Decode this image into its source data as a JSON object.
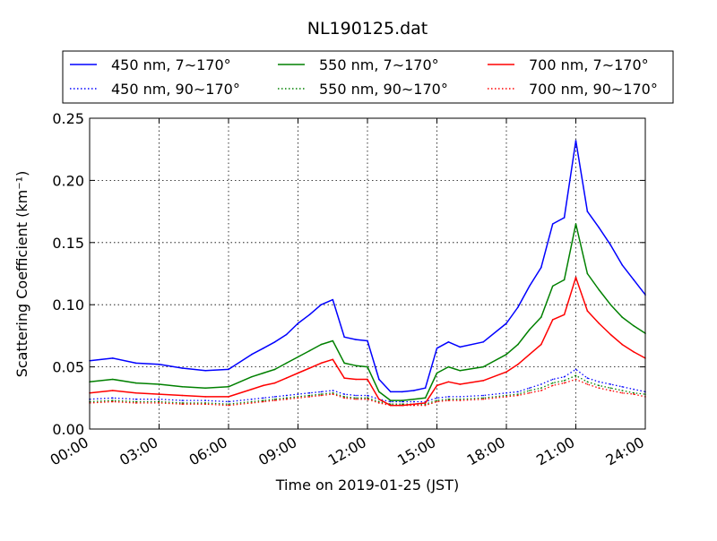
{
  "chart_data": {
    "type": "line",
    "title": "NL190125.dat",
    "xlabel": "Time on 2019-01-25 (JST)",
    "ylabel": "Scattering Coefficient (km⁻¹)",
    "xlim": [
      "00:00",
      "24:00"
    ],
    "ylim": [
      0.0,
      0.25
    ],
    "x_ticks": [
      "00:00",
      "03:00",
      "06:00",
      "09:00",
      "12:00",
      "15:00",
      "18:00",
      "21:00",
      "24:00"
    ],
    "y_ticks": [
      "0.00",
      "0.05",
      "0.10",
      "0.15",
      "0.20",
      "0.25"
    ],
    "grid": true,
    "legend": {
      "placement": "top",
      "columns": 3
    },
    "x": [
      "00:00",
      "01:00",
      "02:00",
      "03:00",
      "04:00",
      "05:00",
      "06:00",
      "07:00",
      "07:30",
      "08:00",
      "08:30",
      "09:00",
      "09:30",
      "10:00",
      "10:30",
      "11:00",
      "11:30",
      "12:00",
      "12:30",
      "13:00",
      "13:30",
      "14:00",
      "14:30",
      "15:00",
      "15:30",
      "16:00",
      "17:00",
      "18:00",
      "18:30",
      "19:00",
      "19:30",
      "20:00",
      "20:30",
      "21:00",
      "21:30",
      "22:00",
      "22:30",
      "23:00",
      "23:30",
      "24:00"
    ],
    "series": [
      {
        "name": "450 nm, 7∼170°",
        "color": "#0000ff",
        "style": "solid",
        "values": [
          0.055,
          0.057,
          0.053,
          0.052,
          0.049,
          0.047,
          0.048,
          0.06,
          0.065,
          0.07,
          0.076,
          0.085,
          0.092,
          0.1,
          0.104,
          0.074,
          0.072,
          0.071,
          0.04,
          0.03,
          0.03,
          0.031,
          0.033,
          0.065,
          0.07,
          0.066,
          0.07,
          0.085,
          0.098,
          0.115,
          0.13,
          0.165,
          0.17,
          0.232,
          0.175,
          0.162,
          0.148,
          0.132,
          0.12,
          0.108
        ]
      },
      {
        "name": "450 nm, 90∼170°",
        "color": "#0000ff",
        "style": "dotted",
        "values": [
          0.024,
          0.025,
          0.024,
          0.024,
          0.023,
          0.023,
          0.022,
          0.024,
          0.025,
          0.026,
          0.027,
          0.028,
          0.029,
          0.03,
          0.031,
          0.028,
          0.027,
          0.027,
          0.024,
          0.022,
          0.022,
          0.022,
          0.022,
          0.025,
          0.026,
          0.026,
          0.027,
          0.029,
          0.03,
          0.033,
          0.036,
          0.04,
          0.042,
          0.048,
          0.041,
          0.038,
          0.036,
          0.034,
          0.032,
          0.03
        ]
      },
      {
        "name": "550 nm, 7∼170°",
        "color": "#008000",
        "style": "solid",
        "values": [
          0.038,
          0.04,
          0.037,
          0.036,
          0.034,
          0.033,
          0.034,
          0.042,
          0.045,
          0.048,
          0.053,
          0.058,
          0.063,
          0.068,
          0.071,
          0.053,
          0.051,
          0.05,
          0.03,
          0.023,
          0.023,
          0.024,
          0.025,
          0.045,
          0.05,
          0.047,
          0.05,
          0.06,
          0.068,
          0.08,
          0.09,
          0.115,
          0.12,
          0.165,
          0.125,
          0.112,
          0.1,
          0.09,
          0.083,
          0.077
        ]
      },
      {
        "name": "550 nm, 90∼170°",
        "color": "#008000",
        "style": "dotted",
        "values": [
          0.022,
          0.023,
          0.022,
          0.022,
          0.021,
          0.021,
          0.02,
          0.022,
          0.023,
          0.024,
          0.025,
          0.026,
          0.027,
          0.028,
          0.029,
          0.026,
          0.025,
          0.025,
          0.022,
          0.02,
          0.02,
          0.02,
          0.02,
          0.023,
          0.024,
          0.024,
          0.025,
          0.027,
          0.028,
          0.031,
          0.033,
          0.037,
          0.039,
          0.043,
          0.038,
          0.035,
          0.033,
          0.031,
          0.029,
          0.028
        ]
      },
      {
        "name": "700 nm, 7∼170°",
        "color": "#ff0000",
        "style": "solid",
        "values": [
          0.029,
          0.031,
          0.029,
          0.028,
          0.027,
          0.026,
          0.026,
          0.032,
          0.035,
          0.037,
          0.041,
          0.045,
          0.049,
          0.053,
          0.056,
          0.041,
          0.04,
          0.04,
          0.024,
          0.019,
          0.019,
          0.02,
          0.021,
          0.035,
          0.038,
          0.036,
          0.039,
          0.046,
          0.052,
          0.06,
          0.068,
          0.088,
          0.092,
          0.122,
          0.095,
          0.085,
          0.076,
          0.068,
          0.062,
          0.057
        ]
      },
      {
        "name": "700 nm, 90∼170°",
        "color": "#ff0000",
        "style": "dotted",
        "values": [
          0.021,
          0.022,
          0.021,
          0.021,
          0.02,
          0.02,
          0.019,
          0.021,
          0.022,
          0.023,
          0.024,
          0.025,
          0.026,
          0.027,
          0.028,
          0.025,
          0.024,
          0.024,
          0.021,
          0.019,
          0.019,
          0.019,
          0.019,
          0.022,
          0.023,
          0.023,
          0.024,
          0.026,
          0.027,
          0.029,
          0.031,
          0.035,
          0.037,
          0.04,
          0.036,
          0.033,
          0.031,
          0.029,
          0.028,
          0.026
        ]
      }
    ]
  }
}
